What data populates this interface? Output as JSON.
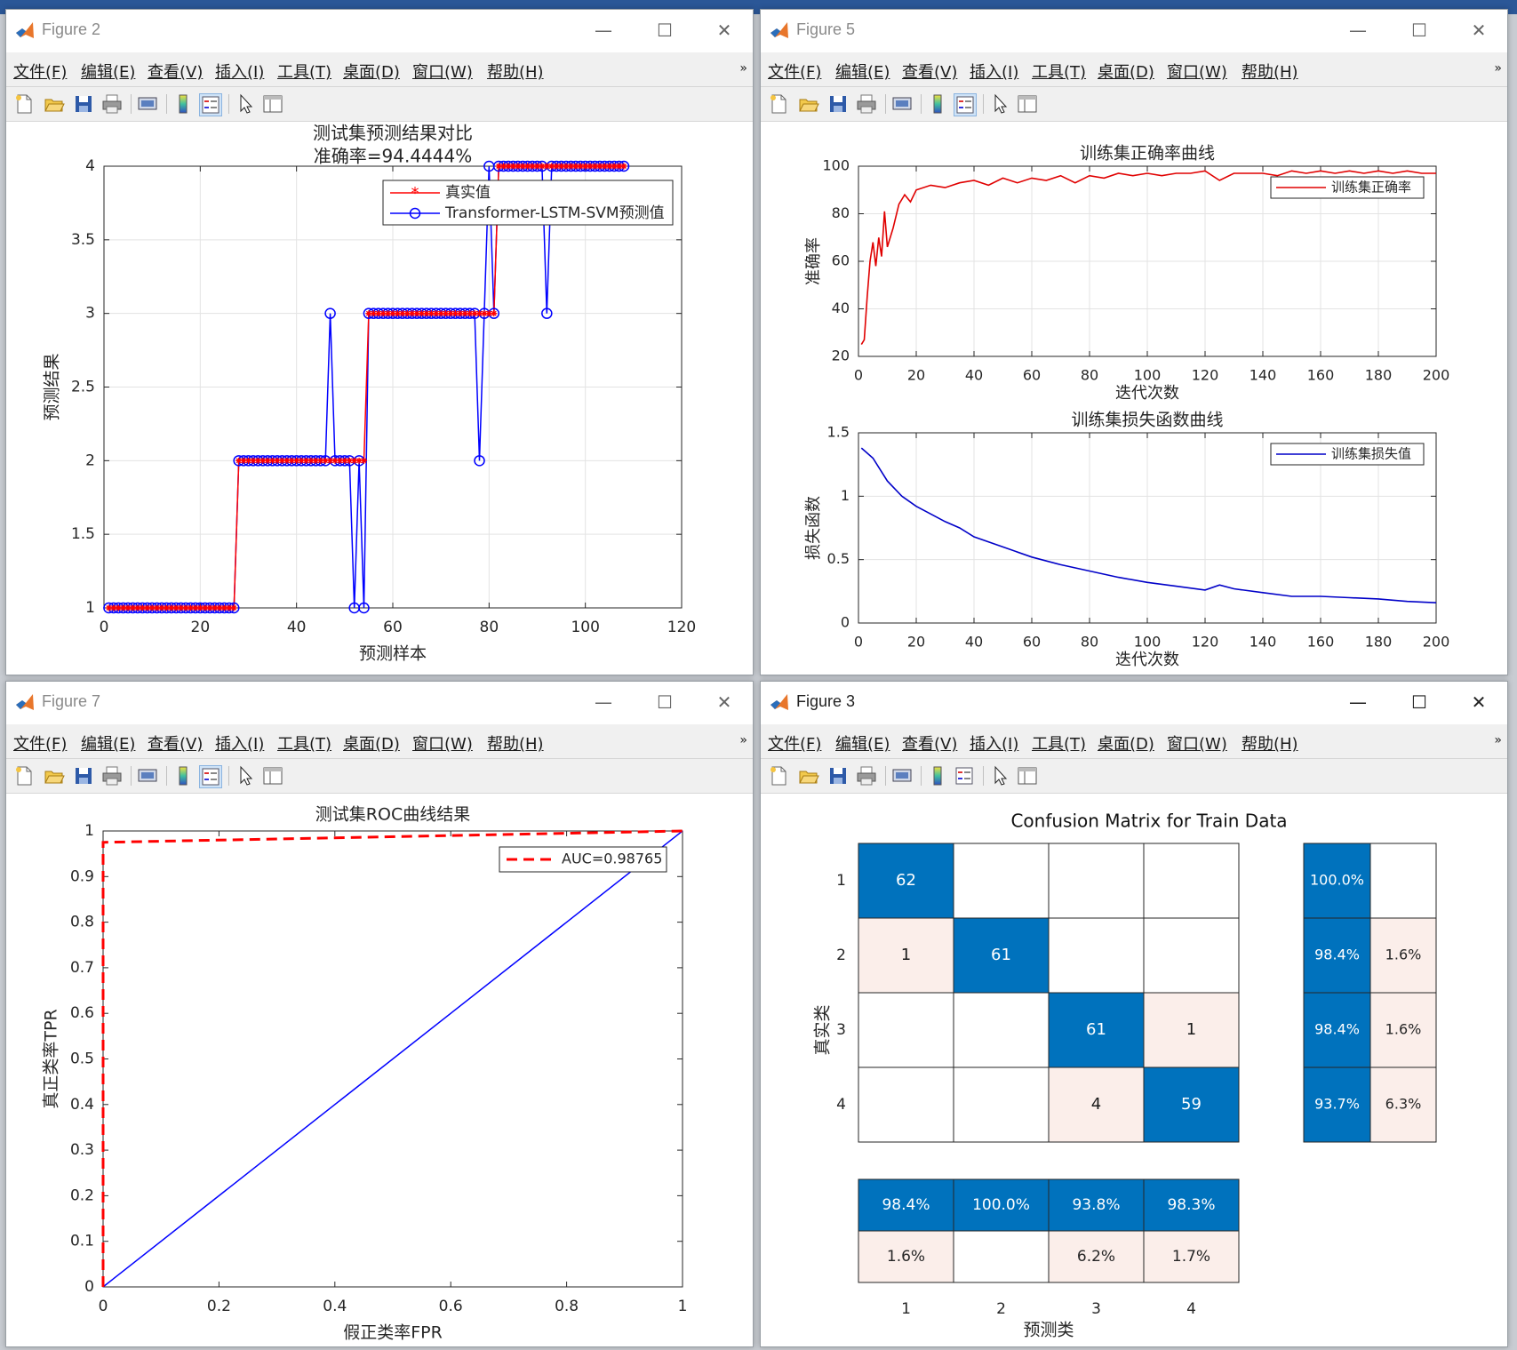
{
  "menu": [
    "文件(F)",
    "编辑(E)",
    "查看(V)",
    "插入(I)",
    "工具(T)",
    "桌面(D)",
    "窗口(W)",
    "帮助(H)"
  ],
  "menu_overflow": "»",
  "toolbar_icons": [
    "new-figure-icon",
    "open-file-icon",
    "save-icon",
    "print-icon",
    "print-preview-icon",
    "colorbar-icon",
    "legend-icon",
    "pointer-icon",
    "property-inspector-icon"
  ],
  "window_controls": {
    "minimize": "—",
    "maximize": "☐",
    "close": "✕"
  },
  "windows": {
    "fig2": {
      "title": "Figure 2"
    },
    "fig5": {
      "title": "Figure 5"
    },
    "fig7": {
      "title": "Figure 7"
    },
    "fig3": {
      "title": "Figure 3"
    }
  },
  "colors": {
    "blue": "#0000ff",
    "red": "#ff0000",
    "matlab_blue": "#0072bd",
    "light_red": "#fbeeea"
  },
  "chart_data": [
    {
      "id": "fig2-prediction",
      "type": "line",
      "title": "测试集预测结果对比",
      "subtitle": "准确率=94.4444%",
      "xlabel": "预测样本",
      "ylabel": "预测结果",
      "xlim": [
        0,
        120
      ],
      "ylim": [
        1,
        4
      ],
      "xticks": [
        "0",
        "20",
        "40",
        "60",
        "80",
        "100",
        "120"
      ],
      "yticks": [
        "1",
        "1.5",
        "2",
        "2.5",
        "3",
        "3.5",
        "4"
      ],
      "grid": true,
      "legend_position": "top-right",
      "series": [
        {
          "name": "真实值",
          "color": "#ff0000",
          "marker": "*",
          "segments": [
            {
              "from": 1,
              "to": 27,
              "value": 1
            },
            {
              "from": 28,
              "to": 54,
              "value": 2
            },
            {
              "from": 55,
              "to": 81,
              "value": 3
            },
            {
              "from": 82,
              "to": 108,
              "value": 4
            }
          ]
        },
        {
          "name": "Transformer-LSTM-SVM预测值",
          "color": "#0000ff",
          "marker": "o",
          "segments": [
            {
              "from": 1,
              "to": 27,
              "value": 1
            },
            {
              "from": 28,
              "to": 54,
              "value": 2
            },
            {
              "from": 55,
              "to": 81,
              "value": 3
            },
            {
              "from": 82,
              "to": 108,
              "value": 4
            }
          ],
          "deviations": [
            {
              "x": 47,
              "value": 3
            },
            {
              "x": 52,
              "value": 1
            },
            {
              "x": 54,
              "value": 1
            },
            {
              "x": 78,
              "value": 2
            },
            {
              "x": 80,
              "value": 4
            },
            {
              "x": 92,
              "value": 3
            }
          ]
        }
      ]
    },
    {
      "id": "fig5-accuracy",
      "type": "line",
      "title": "训练集正确率曲线",
      "xlabel": "迭代次数",
      "ylabel": "准确率",
      "xlim": [
        0,
        200
      ],
      "ylim": [
        20,
        100
      ],
      "xticks": [
        "0",
        "20",
        "40",
        "60",
        "80",
        "100",
        "120",
        "140",
        "160",
        "180",
        "200"
      ],
      "yticks": [
        "20",
        "40",
        "60",
        "80",
        "100"
      ],
      "grid": true,
      "legend_position": "top-right",
      "series": [
        {
          "name": "训练集正确率",
          "color": "#e00000",
          "x": [
            1,
            2,
            3,
            4,
            5,
            6,
            7,
            8,
            9,
            10,
            12,
            14,
            16,
            18,
            20,
            25,
            30,
            35,
            40,
            45,
            50,
            55,
            60,
            65,
            70,
            75,
            80,
            85,
            90,
            95,
            100,
            105,
            110,
            115,
            120,
            125,
            130,
            135,
            140,
            145,
            150,
            155,
            160,
            165,
            170,
            175,
            180,
            185,
            190,
            195,
            200
          ],
          "y": [
            25,
            27,
            45,
            60,
            68,
            58,
            70,
            62,
            81,
            66,
            74,
            84,
            88,
            85,
            90,
            92,
            91,
            93,
            94,
            92,
            95,
            93,
            95,
            94,
            96,
            93,
            96,
            95,
            97,
            96,
            97,
            96,
            97,
            97,
            98,
            94,
            97,
            97,
            97,
            96,
            98,
            97,
            98,
            97,
            98,
            97,
            98,
            97,
            98,
            97,
            97
          ]
        }
      ]
    },
    {
      "id": "fig5-loss",
      "type": "line",
      "title": "训练集损失函数曲线",
      "xlabel": "迭代次数",
      "ylabel": "损失函数",
      "xlim": [
        0,
        200
      ],
      "ylim": [
        0,
        1.5
      ],
      "xticks": [
        "0",
        "20",
        "40",
        "60",
        "80",
        "100",
        "120",
        "140",
        "160",
        "180",
        "200"
      ],
      "yticks": [
        "0",
        "0.5",
        "1",
        "1.5"
      ],
      "grid": true,
      "legend_position": "top-right",
      "series": [
        {
          "name": "训练集损失值",
          "color": "#0000c8",
          "x": [
            1,
            5,
            10,
            15,
            20,
            25,
            30,
            35,
            40,
            50,
            60,
            70,
            80,
            90,
            100,
            110,
            120,
            125,
            130,
            140,
            150,
            160,
            170,
            180,
            190,
            200
          ],
          "y": [
            1.38,
            1.3,
            1.12,
            1.0,
            0.92,
            0.86,
            0.8,
            0.75,
            0.68,
            0.6,
            0.52,
            0.46,
            0.41,
            0.36,
            0.32,
            0.29,
            0.26,
            0.3,
            0.27,
            0.24,
            0.21,
            0.21,
            0.2,
            0.19,
            0.17,
            0.16
          ]
        }
      ]
    },
    {
      "id": "fig7-roc",
      "type": "line",
      "title": "测试集ROC曲线结果",
      "xlabel": "假正类率FPR",
      "ylabel": "真正类率TPR",
      "xlim": [
        0,
        1
      ],
      "ylim": [
        0,
        1
      ],
      "xticks": [
        "0",
        "0.2",
        "0.4",
        "0.6",
        "0.8",
        "1"
      ],
      "yticks": [
        "0",
        "0.1",
        "0.2",
        "0.3",
        "0.4",
        "0.5",
        "0.6",
        "0.7",
        "0.8",
        "0.9",
        "1"
      ],
      "grid": false,
      "legend_position": "top-right",
      "series": [
        {
          "name": "AUC=0.98765",
          "color": "#ff0000",
          "style": "dashed",
          "x": [
            0,
            0,
            1
          ],
          "y": [
            0,
            0.975,
            1
          ]
        },
        {
          "color": "#0000ff",
          "style": "solid",
          "x": [
            0,
            1
          ],
          "y": [
            0,
            1
          ]
        }
      ]
    },
    {
      "id": "fig3-confusion",
      "type": "heatmap",
      "title": "Confusion Matrix for Train Data",
      "xlabel": "预测类",
      "ylabel": "真实类",
      "classes": [
        "1",
        "2",
        "3",
        "4"
      ],
      "matrix": [
        [
          62,
          0,
          0,
          0
        ],
        [
          1,
          61,
          0,
          0
        ],
        [
          0,
          0,
          61,
          1
        ],
        [
          0,
          0,
          4,
          59
        ]
      ],
      "row_summary": [
        [
          "100.0%",
          ""
        ],
        [
          "98.4%",
          "1.6%"
        ],
        [
          "98.4%",
          "1.6%"
        ],
        [
          "93.7%",
          "6.3%"
        ]
      ],
      "column_summary": [
        [
          "98.4%",
          "1.6%"
        ],
        [
          "100.0%",
          ""
        ],
        [
          "93.8%",
          "6.2%"
        ],
        [
          "98.3%",
          "1.7%"
        ]
      ]
    }
  ]
}
